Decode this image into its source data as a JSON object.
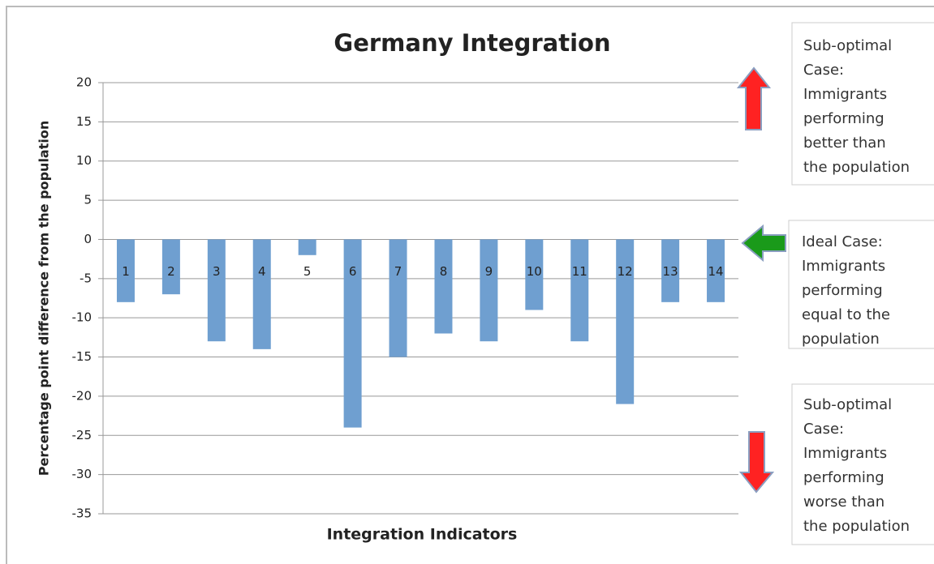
{
  "chart_data": {
    "type": "bar",
    "title": "Germany Integration",
    "x_label": "Integration Indicators",
    "y_label": "Percentage point difference from the population",
    "categories": [
      "1",
      "2",
      "3",
      "4",
      "5",
      "6",
      "7",
      "8",
      "9",
      "10",
      "11",
      "12",
      "13",
      "14"
    ],
    "values": [
      -8,
      -7,
      -13,
      -14,
      -2,
      -24,
      -15,
      -12,
      -13,
      -9,
      -13,
      -21,
      -8,
      -8
    ],
    "color": "#6f9fd0",
    "ylim": [
      -35,
      20
    ],
    "yticks": [
      20,
      15,
      10,
      5,
      0,
      -5,
      -10,
      -15,
      -20,
      -25,
      -30,
      -35
    ],
    "grid": true,
    "annotations": [
      {
        "lines": [
          "Sub-optimal",
          "Case:",
          "Immigrants",
          "performing",
          "better than",
          "the population"
        ]
      },
      {
        "lines": [
          "Ideal Case:",
          "Immigrants",
          "performing",
          "equal to the",
          "population"
        ]
      },
      {
        "lines": [
          "Sub-optimal",
          "Case:",
          "Immigrants",
          "performing",
          "worse than",
          "the population"
        ]
      }
    ]
  }
}
